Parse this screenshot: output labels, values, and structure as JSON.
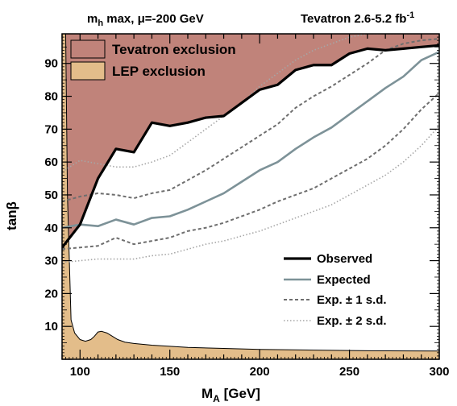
{
  "chart_data": {
    "type": "line",
    "title_left": "m",
    "title_left_sub": "h",
    "title_left_rest": " max, μ=-200 GeV",
    "title_right": "Tevatron 2.6-5.2 fb",
    "title_right_sup": "-1",
    "xlabel": "M",
    "xlabel_sub": "A",
    "xlabel_unit": " [GeV]",
    "ylabel": "tanβ",
    "xlim": [
      90,
      300
    ],
    "ylim": [
      0,
      99
    ],
    "x_ticks": [
      100,
      150,
      200,
      250,
      300
    ],
    "y_ticks": [
      10,
      20,
      30,
      40,
      50,
      60,
      70,
      80,
      90
    ],
    "colors": {
      "tevatron": "#c0837a",
      "lep": "#e3bd8a",
      "observed": "#000000",
      "expected": "#7d9298",
      "one_sd": "#6e6e6e",
      "two_sd": "#a6a6a6"
    },
    "regions": [
      {
        "name": "Tevatron exclusion",
        "label": "Tevatron exclusion"
      },
      {
        "name": "LEP exclusion",
        "label": "LEP exclusion"
      }
    ],
    "lep_boundary": {
      "x": [
        92,
        93,
        95,
        97,
        100,
        103,
        106,
        108,
        110,
        112,
        115,
        118,
        121,
        125,
        130,
        140,
        160,
        180,
        200,
        230,
        260,
        300
      ],
      "y": [
        99,
        50,
        12,
        8,
        6,
        5.5,
        6,
        7,
        8.3,
        8.5,
        8,
        7,
        6,
        5.2,
        4.8,
        4.3,
        3.6,
        3.3,
        3.0,
        2.8,
        2.6,
        2.5
      ]
    },
    "x": [
      90,
      100,
      110,
      120,
      130,
      140,
      150,
      160,
      170,
      180,
      190,
      200,
      210,
      220,
      230,
      240,
      250,
      260,
      270,
      280,
      290,
      300
    ],
    "series": [
      {
        "name": "Observed",
        "label": "Observed",
        "style": "observed",
        "y": [
          34,
          41,
          55,
          64,
          63,
          72,
          71,
          72,
          73.5,
          74,
          78,
          82,
          83.5,
          88,
          89.5,
          89.5,
          93,
          94.5,
          94,
          94.5,
          95,
          95.5
        ]
      },
      {
        "name": "Expected",
        "label": "Expected",
        "style": "expected",
        "y": [
          40,
          41,
          40.5,
          42.5,
          41,
          43,
          43.5,
          45.5,
          48,
          50.5,
          54,
          57.5,
          60,
          64,
          67.5,
          70.5,
          74.5,
          78.5,
          82.5,
          86,
          91,
          93.5
        ]
      },
      {
        "name": "Exp. +1 s.d.",
        "label": "Exp. ± 1 s.d.",
        "style": "one_sd",
        "y": [
          48,
          49.5,
          50.5,
          50,
          49,
          50.5,
          51.5,
          54.5,
          57.5,
          61,
          64.5,
          68,
          71.5,
          76.5,
          80,
          83,
          86.5,
          90,
          94,
          96,
          97,
          97.5
        ]
      },
      {
        "name": "Exp. -1 s.d.",
        "label": "",
        "style": "one_sd",
        "y": [
          33.5,
          34,
          34.5,
          37,
          35,
          36,
          37,
          39,
          40,
          41.5,
          43.5,
          45.5,
          48,
          50,
          52,
          55,
          58,
          61,
          65,
          70,
          76,
          81
        ]
      },
      {
        "name": "Exp. +2 s.d.",
        "label": "Exp. ± 2 s.d.",
        "style": "two_sd",
        "y": [
          57,
          60.5,
          59.5,
          58.5,
          58.5,
          60,
          62,
          66,
          70,
          74,
          78,
          83,
          87,
          91,
          94,
          96,
          98,
          99,
          99,
          99,
          99,
          99
        ]
      },
      {
        "name": "Exp. -2 s.d.",
        "label": "",
        "style": "two_sd",
        "y": [
          29.5,
          30,
          30.5,
          30.5,
          30.5,
          31.5,
          32,
          33.5,
          35,
          36,
          37.5,
          39,
          41,
          43,
          45,
          47,
          50,
          53,
          56,
          60,
          65,
          71
        ]
      }
    ],
    "legend_bottom": {
      "observed": "Observed",
      "expected": "Expected",
      "one_sd": "Exp. ± 1 s.d.",
      "two_sd": "Exp. ± 2 s.d."
    },
    "legend_top": {
      "tevatron": "Tevatron exclusion",
      "lep": "LEP exclusion"
    }
  }
}
